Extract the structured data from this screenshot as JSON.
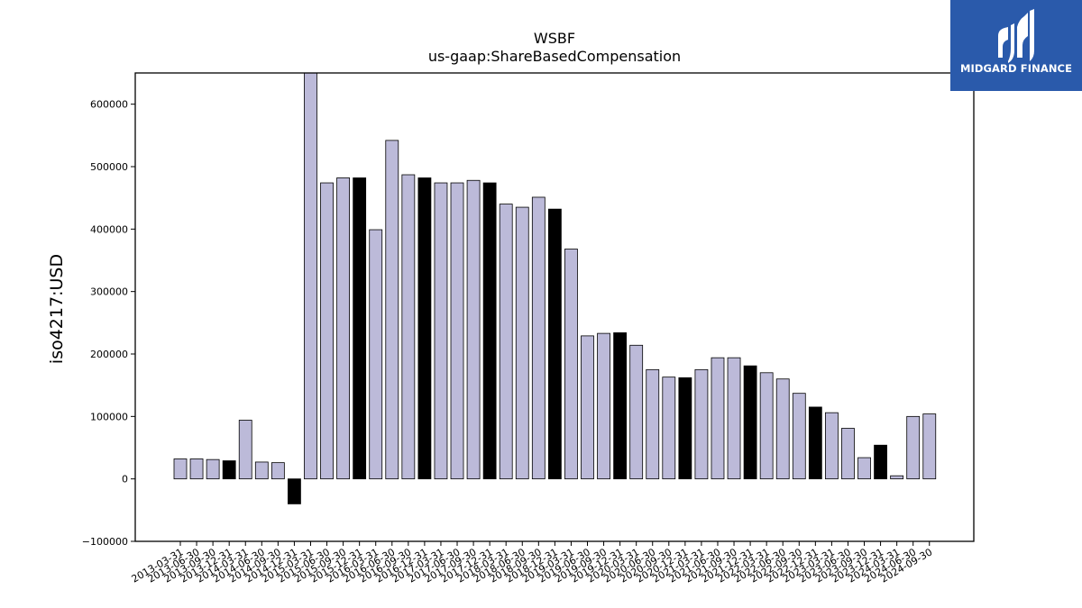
{
  "logo": {
    "text": "MIDGARD FINANCE",
    "icon": "midgard-logo-icon",
    "background": "#2a5aab"
  },
  "chart_data": {
    "type": "bar",
    "title": "WSBF",
    "subtitle": "us-gaap:ShareBasedCompensation",
    "xlabel": "",
    "ylabel": "iso4217:USD",
    "ylim": [
      -100000,
      650000
    ],
    "yticks": [
      -100000,
      0,
      100000,
      200000,
      300000,
      400000,
      500000,
      600000
    ],
    "ytick_labels": [
      "−100000",
      "0",
      "100000",
      "200000",
      "300000",
      "400000",
      "500000",
      "600000"
    ],
    "grid": false,
    "colors": {
      "quarter": "#bcbad9",
      "annual": "#000000",
      "edge": "#000000"
    },
    "categories": [
      "2013-03-31",
      "2013-06-30",
      "2013-09-30",
      "2013-12-31",
      "2014-03-31",
      "2014-06-30",
      "2014-09-30",
      "2014-12-31",
      "2015-03-31",
      "2015-06-30",
      "2015-09-30",
      "2015-12-31",
      "2016-03-31",
      "2016-06-30",
      "2016-09-30",
      "2016-12-31",
      "2017-03-31",
      "2017-06-30",
      "2017-09-30",
      "2017-12-31",
      "2018-03-31",
      "2018-06-30",
      "2018-09-30",
      "2018-12-31",
      "2019-03-31",
      "2019-06-30",
      "2019-09-30",
      "2019-12-31",
      "2020-03-31",
      "2020-06-30",
      "2020-09-30",
      "2020-12-31",
      "2021-03-31",
      "2021-06-30",
      "2021-09-30",
      "2021-12-31",
      "2022-03-31",
      "2022-06-30",
      "2022-09-30",
      "2022-12-31",
      "2023-03-31",
      "2023-06-30",
      "2023-09-30",
      "2023-12-31",
      "2024-03-31",
      "2024-06-30",
      "2024-09-30"
    ],
    "values": [
      32000,
      32000,
      31000,
      29000,
      94000,
      27000,
      26000,
      -40000,
      660000,
      474000,
      482000,
      482000,
      399000,
      542000,
      487000,
      482000,
      474000,
      474000,
      478000,
      474000,
      440000,
      435000,
      451000,
      432000,
      368000,
      229000,
      233000,
      234000,
      214000,
      175000,
      163000,
      162000,
      175000,
      194000,
      194000,
      181000,
      170000,
      160000,
      137000,
      115000,
      106000,
      81000,
      34000,
      54000,
      5000,
      100000,
      104000
    ],
    "highlight": [
      false,
      false,
      false,
      true,
      false,
      false,
      false,
      true,
      false,
      false,
      false,
      true,
      false,
      false,
      false,
      true,
      false,
      false,
      false,
      true,
      false,
      false,
      false,
      true,
      false,
      false,
      false,
      true,
      false,
      false,
      false,
      true,
      false,
      false,
      false,
      true,
      false,
      false,
      false,
      true,
      false,
      false,
      false,
      true,
      false,
      false,
      false
    ]
  }
}
